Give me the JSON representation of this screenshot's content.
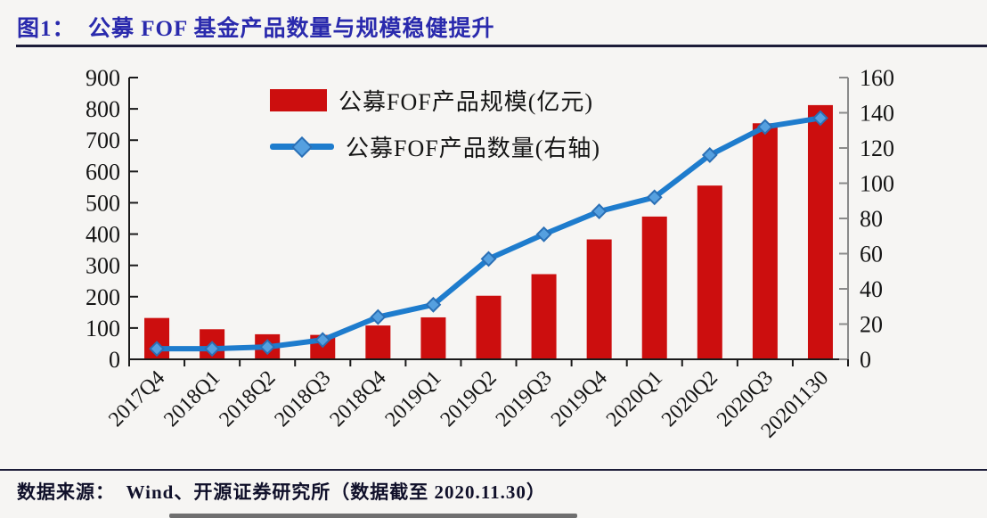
{
  "figure": {
    "title": "图1：  公募 FOF 基金产品数量与规模稳健提升"
  },
  "chart_data": {
    "type": "bar+line combo",
    "categories": [
      "2017Q4",
      "2018Q1",
      "2018Q2",
      "2018Q3",
      "2018Q4",
      "2019Q1",
      "2019Q2",
      "2019Q3",
      "2019Q4",
      "2020Q1",
      "2020Q2",
      "2020Q3",
      "20201130"
    ],
    "series": [
      {
        "name": "公募FOF产品规模(亿元)",
        "type": "bar",
        "axis": "left",
        "color": "#cc0e0e",
        "values": [
          132,
          96,
          80,
          78,
          108,
          134,
          203,
          272,
          383,
          456,
          555,
          754,
          812
        ]
      },
      {
        "name": "公募FOF产品数量(右轴)",
        "type": "line",
        "axis": "right",
        "color": "#1e7ccd",
        "marker": "diamond",
        "marker_fill": "#55a0e0",
        "marker_stroke": "#2a6fb5",
        "values": [
          6,
          6,
          7,
          11,
          24,
          31,
          57,
          71,
          84,
          92,
          116,
          132,
          137
        ]
      }
    ],
    "left_axis": {
      "min": 0,
      "max": 900,
      "step": 100
    },
    "right_axis": {
      "min": 0,
      "max": 160,
      "step": 20
    },
    "grid": false,
    "legend_position": "top-center",
    "x_label_rotation": 45
  },
  "footer": {
    "source_text": "数据来源：  Wind、开源证券研究所（数据截至 2020.11.30）"
  },
  "colors": {
    "title": "#2a2aad",
    "rule": "#1c1c38",
    "axis_dark": "#1a1a1a",
    "axis_light": "#8a8a8a",
    "text": "#141414",
    "background": "#f6f5f3"
  }
}
